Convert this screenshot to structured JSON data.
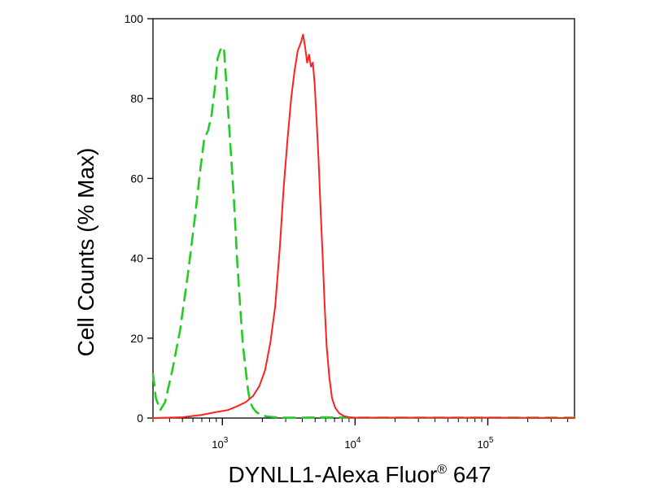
{
  "chart_data": {
    "type": "line",
    "xlabel": "DYNLL1-Alexa Fluor® 647",
    "xlabel_main": "DYNLL1-Alexa Fluor",
    "xlabel_sup": "®",
    "xlabel_tail": " 647",
    "ylabel": "Cell Counts (% Max)",
    "x_scale": "log",
    "xlim": [
      300,
      450000
    ],
    "ylim": [
      0,
      100
    ],
    "y_ticks": [
      "0",
      "20",
      "40",
      "60",
      "80",
      "100"
    ],
    "x_major_ticks": [
      {
        "base": "10",
        "exp": "3",
        "value": 1000
      },
      {
        "base": "10",
        "exp": "4",
        "value": 10000
      },
      {
        "base": "10",
        "exp": "5",
        "value": 100000
      }
    ],
    "grid": false,
    "legend": "none",
    "series": [
      {
        "style": "dashed",
        "color": "#22cc22",
        "x": [
          300,
          315,
          340,
          370,
          420,
          480,
          550,
          620,
          680,
          730,
          780,
          830,
          880,
          920,
          960,
          1000,
          1030,
          1060,
          1100,
          1150,
          1220,
          1290,
          1360,
          1430,
          1500,
          1560,
          1620,
          1700,
          1800,
          1950,
          2150,
          2500,
          3000,
          4000,
          6000,
          10000,
          100000,
          450000
        ],
        "y": [
          11,
          5,
          2,
          4,
          12,
          22,
          36,
          50,
          62,
          70,
          72,
          76,
          83,
          90,
          92,
          93,
          92,
          86,
          78,
          68,
          55,
          40,
          28,
          18,
          12,
          7,
          4,
          2.5,
          1.5,
          0.8,
          0.4,
          0.2,
          0.1,
          0.1,
          0.2,
          0.1,
          0.1,
          0.1
        ]
      },
      {
        "style": "solid",
        "color": "#ff2020",
        "x": [
          300,
          500,
          700,
          900,
          1100,
          1300,
          1500,
          1700,
          1900,
          2100,
          2300,
          2500,
          2700,
          2900,
          3100,
          3300,
          3500,
          3700,
          3900,
          4050,
          4200,
          4350,
          4500,
          4650,
          4800,
          4950,
          5100,
          5300,
          5500,
          5700,
          5900,
          6100,
          6400,
          6700,
          7100,
          7600,
          8200,
          9000,
          10000,
          11000,
          13000,
          20000,
          100000,
          450000
        ],
        "y": [
          0,
          0.2,
          0.8,
          1.5,
          2,
          3,
          4,
          5.5,
          8,
          12,
          19,
          28,
          42,
          58,
          70,
          80,
          87,
          92,
          94,
          96,
          93,
          89,
          91,
          88,
          89,
          84,
          76,
          65,
          52,
          40,
          28,
          18,
          10,
          5,
          2.5,
          1.2,
          0.5,
          0.2,
          0.1,
          0.1,
          0.1,
          0.1,
          0.1,
          0
        ]
      }
    ]
  }
}
